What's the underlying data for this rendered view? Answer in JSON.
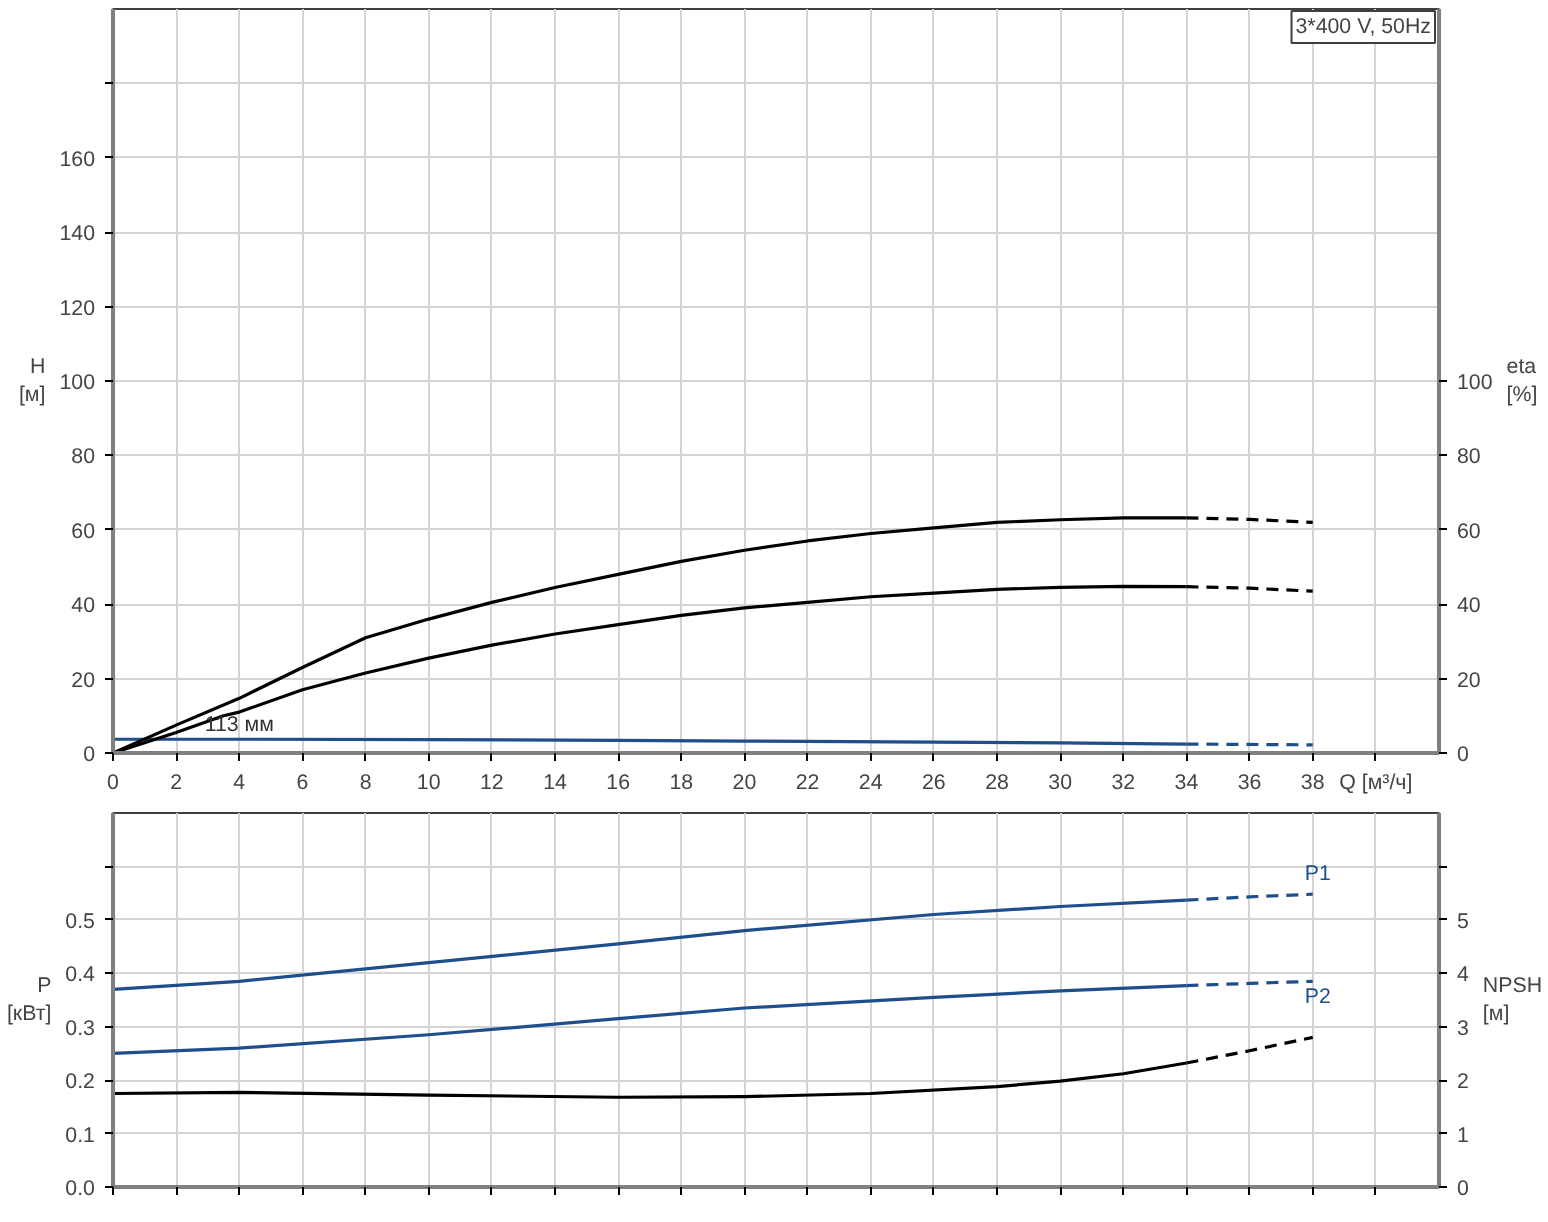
{
  "chart_data": [
    {
      "type": "line",
      "ylabel": "H [м]",
      "y2label": "eta [%]",
      "xlabel": "Q [м³/ч]",
      "grid": true,
      "xlim": [
        0,
        42
      ],
      "xticks": [
        0,
        2,
        4,
        6,
        8,
        10,
        12,
        14,
        16,
        18,
        20,
        22,
        24,
        26,
        28,
        30,
        32,
        34,
        36,
        38,
        {
          "value": 40,
          "label": null
        }
      ],
      "ylim": [
        0,
        200
      ],
      "yticks": [
        0,
        20,
        40,
        60,
        80,
        100,
        120,
        140,
        160,
        {
          "value": 180,
          "label": null
        }
      ],
      "y2lim": [
        0,
        200
      ],
      "y2ticks": [
        0,
        20,
        40,
        60,
        80,
        100
      ],
      "annotations": [
        "3*400 V, 50Hz",
        {
          "text": "113 мм",
          "x": 4,
          "y": 3.7
        }
      ],
      "series": [
        {
          "color": "#1f4e8c",
          "line_style": "solid",
          "x": [
            0,
            4,
            10,
            16,
            20,
            26,
            30,
            34
          ],
          "values": [
            3.7,
            3.7,
            3.6,
            3.4,
            3.2,
            2.9,
            2.7,
            2.4
          ]
        },
        {
          "color": "#1f4e8c",
          "line_style": "dashed",
          "x": [
            34,
            36,
            38
          ],
          "values": [
            2.4,
            2.3,
            2.2
          ]
        },
        {
          "color": "#000000",
          "line_style": "solid",
          "axis": "y2",
          "x": [
            0,
            2,
            4,
            6,
            8,
            10,
            12,
            14,
            16,
            18,
            20,
            22,
            24,
            26,
            28,
            30,
            32,
            34
          ],
          "values": [
            0,
            7.5,
            14.7,
            23,
            31,
            36,
            40.5,
            44.5,
            48,
            51.5,
            54.5,
            57,
            59,
            60.5,
            62,
            62.7,
            63.2,
            63.2
          ]
        },
        {
          "color": "#000000",
          "line_style": "dashed",
          "axis": "y2",
          "x": [
            34,
            36,
            38
          ],
          "values": [
            63.2,
            62.8,
            62
          ]
        },
        {
          "color": "#000000",
          "line_style": "solid",
          "axis": "y2",
          "x": [
            0,
            2,
            3.5,
            4,
            6,
            8,
            10,
            12,
            14,
            16,
            18,
            20,
            22,
            24,
            26,
            28,
            30,
            32,
            34
          ],
          "values": [
            0,
            5.5,
            10,
            11,
            17,
            21.5,
            25.5,
            29,
            32,
            34.5,
            37,
            39,
            40.5,
            42,
            43,
            44,
            44.5,
            44.8,
            44.7
          ]
        },
        {
          "color": "#000000",
          "line_style": "dashed",
          "axis": "y2",
          "x": [
            34,
            36,
            38
          ],
          "values": [
            44.7,
            44.3,
            43.5
          ]
        }
      ]
    },
    {
      "type": "line",
      "ylabel": "P [кВт]",
      "y2label": "NPSH [м]",
      "grid": true,
      "tick_labels": "y",
      "xlim": [
        0,
        42
      ],
      "xticks": [
        0,
        2,
        4,
        6,
        8,
        10,
        12,
        14,
        16,
        18,
        20,
        22,
        24,
        26,
        28,
        30,
        32,
        34,
        36,
        38,
        40
      ],
      "ylim": [
        0,
        0.7
      ],
      "yticks": [
        {
          "value": 0,
          "label": "0.0"
        },
        0.1,
        0.2,
        0.3,
        0.4,
        0.5,
        {
          "value": 0.6,
          "label": null
        }
      ],
      "y2lim": [
        0,
        7
      ],
      "y2ticks": [
        0,
        1,
        2,
        3,
        4,
        5,
        {
          "value": 6,
          "label": null
        }
      ],
      "series": [
        {
          "color": "#1f4e8c",
          "line_style": "solid",
          "x": [
            0,
            4,
            10,
            16,
            20,
            26,
            30,
            34
          ],
          "values": [
            0.37,
            0.385,
            0.42,
            0.455,
            0.48,
            0.51,
            0.525,
            0.537
          ]
        },
        {
          "name": "P1",
          "color": "#1f4e8c",
          "line_style": "dashed",
          "x": [
            34,
            36,
            38
          ],
          "values": [
            0.537,
            0.543,
            0.548
          ]
        },
        {
          "color": "#1f4e8c",
          "line_style": "solid",
          "x": [
            0,
            4,
            10,
            16,
            20,
            26,
            30,
            34
          ],
          "values": [
            0.25,
            0.26,
            0.285,
            0.315,
            0.335,
            0.355,
            0.367,
            0.377
          ]
        },
        {
          "name": "P2",
          "color": "#1f4e8c",
          "line_style": "dashed",
          "x": [
            34,
            36,
            38
          ],
          "values": [
            0.377,
            0.381,
            0.385
          ]
        },
        {
          "color": "#000000",
          "line_style": "solid",
          "axis": "y2",
          "x": [
            0,
            4,
            10,
            16,
            20,
            24,
            28,
            30,
            32,
            34
          ],
          "values": [
            1.75,
            1.77,
            1.72,
            1.68,
            1.69,
            1.75,
            1.88,
            1.98,
            2.12,
            2.32
          ]
        },
        {
          "color": "#000000",
          "line_style": "dashed",
          "axis": "y2",
          "x": [
            34,
            36,
            38
          ],
          "values": [
            2.32,
            2.55,
            2.8
          ]
        }
      ]
    }
  ]
}
